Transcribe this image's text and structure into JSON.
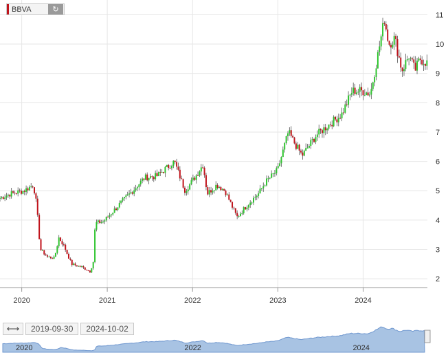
{
  "symbol": {
    "name": "BBVA"
  },
  "range": {
    "from": "2019-09-30",
    "to": "2024-10-02"
  },
  "colors": {
    "up": "#2ec42e",
    "down": "#c0141c",
    "grid": "#e6e6e6",
    "navigator_fill": "#a8c3e3",
    "navigator_line": "#6f97cf"
  },
  "icons": {
    "refresh": "refresh-icon",
    "range_toggle": "left-right-arrow-icon"
  },
  "chart_data": {
    "type": "candlestick",
    "period": "weekly",
    "y_axis": {
      "ticks": [
        2,
        3,
        4,
        5,
        6,
        7,
        8,
        9,
        10,
        11
      ],
      "range": [
        1.7,
        11.5
      ],
      "position": "right"
    },
    "x_axis": {
      "ticks": [
        "2020",
        "2021",
        "2022",
        "2023",
        "2024"
      ],
      "range": [
        "2019-09-30",
        "2024-10-02"
      ]
    },
    "navigator_ticks": [
      "2020",
      "2022",
      "2024"
    ],
    "grid": "vertical-and-horizontal",
    "close_anchors": [
      [
        "2019-09-30",
        4.75
      ],
      [
        "2019-11-15",
        4.9
      ],
      [
        "2020-01-10",
        5.0
      ],
      [
        "2020-02-20",
        5.2
      ],
      [
        "2020-03-05",
        4.5
      ],
      [
        "2020-03-20",
        3.0
      ],
      [
        "2020-04-20",
        2.75
      ],
      [
        "2020-05-20",
        2.7
      ],
      [
        "2020-06-08",
        3.4
      ],
      [
        "2020-07-01",
        3.1
      ],
      [
        "2020-08-01",
        2.5
      ],
      [
        "2020-09-15",
        2.4
      ],
      [
        "2020-10-20",
        2.25
      ],
      [
        "2020-11-05",
        2.65
      ],
      [
        "2020-11-10",
        3.9
      ],
      [
        "2020-12-15",
        3.95
      ],
      [
        "2021-02-01",
        4.35
      ],
      [
        "2021-03-01",
        4.6
      ],
      [
        "2021-04-20",
        5.0
      ],
      [
        "2021-06-10",
        5.45
      ],
      [
        "2021-08-01",
        5.5
      ],
      [
        "2021-10-15",
        6.0
      ],
      [
        "2021-11-30",
        5.0
      ],
      [
        "2022-01-15",
        5.5
      ],
      [
        "2022-02-15",
        5.9
      ],
      [
        "2022-03-05",
        4.9
      ],
      [
        "2022-04-15",
        5.2
      ],
      [
        "2022-05-20",
        5.0
      ],
      [
        "2022-07-10",
        4.1
      ],
      [
        "2022-09-01",
        4.6
      ],
      [
        "2022-10-10",
        4.9
      ],
      [
        "2022-11-10",
        5.3
      ],
      [
        "2022-12-31",
        5.7
      ],
      [
        "2023-02-15",
        7.0
      ],
      [
        "2023-03-15",
        6.6
      ],
      [
        "2023-04-15",
        6.2
      ],
      [
        "2023-06-15",
        6.9
      ],
      [
        "2023-08-15",
        7.3
      ],
      [
        "2023-10-01",
        7.6
      ],
      [
        "2023-11-15",
        8.4
      ],
      [
        "2023-12-31",
        8.4
      ],
      [
        "2024-02-01",
        8.3
      ],
      [
        "2024-03-01",
        9.5
      ],
      [
        "2024-04-01",
        10.85
      ],
      [
        "2024-04-20",
        10.0
      ],
      [
        "2024-05-15",
        10.2
      ],
      [
        "2024-06-15",
        9.1
      ],
      [
        "2024-07-15",
        9.6
      ],
      [
        "2024-08-10",
        9.1
      ],
      [
        "2024-09-01",
        9.5
      ],
      [
        "2024-10-02",
        9.35
      ]
    ]
  }
}
